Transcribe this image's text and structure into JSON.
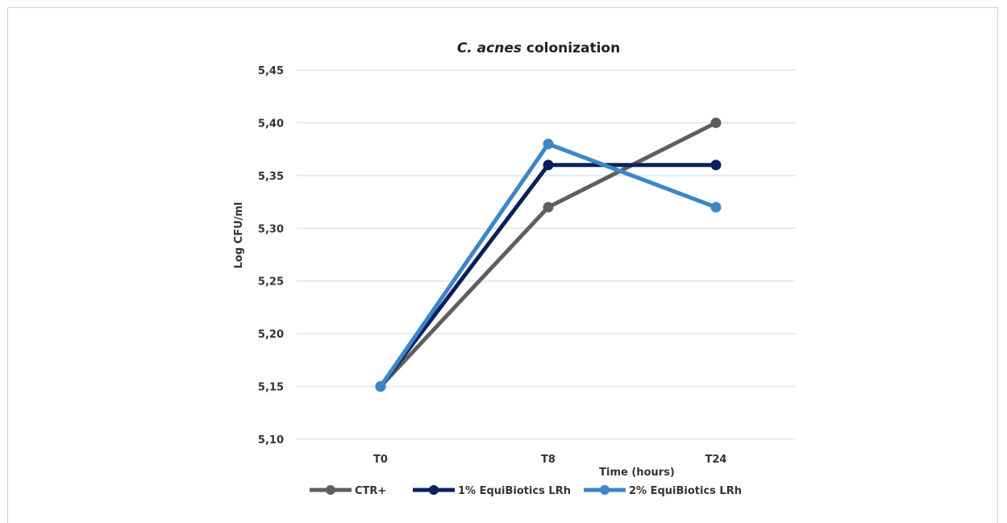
{
  "chart_data": {
    "type": "line",
    "title_italic": "C. acnes",
    "title_rest": " colonization",
    "xlabel": "Time (hours)",
    "ylabel": "Log CFU/ml",
    "categories": [
      "T0",
      "T8",
      "T24"
    ],
    "ylim": [
      5.1,
      5.45
    ],
    "yticks": [
      "5,10",
      "5,15",
      "5,20",
      "5,25",
      "5,30",
      "5,35",
      "5,40",
      "5,45"
    ],
    "grid": true,
    "legend_position": "bottom",
    "series": [
      {
        "name": "CTR+",
        "color": "#5f5f5f",
        "values": [
          5.15,
          5.32,
          5.4
        ]
      },
      {
        "name": "1% EquiBiotics LRh",
        "color": "#0b1f5c",
        "values": [
          5.15,
          5.36,
          5.36
        ]
      },
      {
        "name": "2% EquiBiotics LRh",
        "color": "#3a86c8",
        "values": [
          5.15,
          5.38,
          5.32
        ]
      }
    ]
  }
}
